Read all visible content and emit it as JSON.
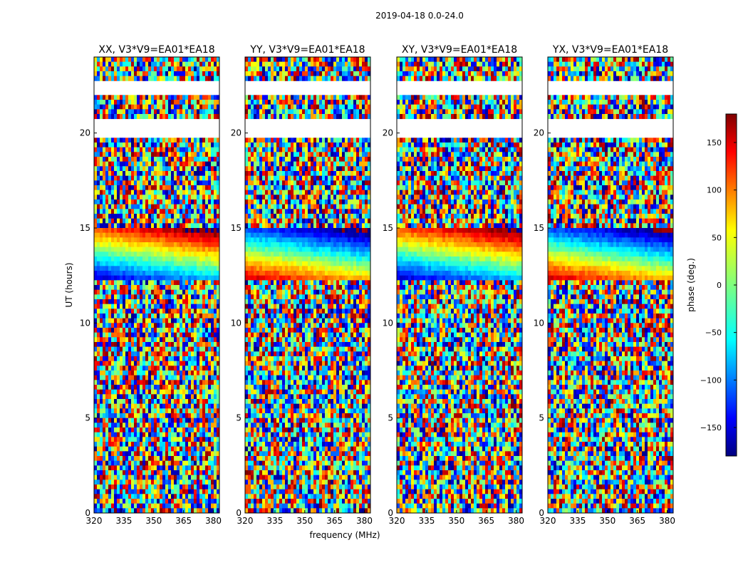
{
  "figure": {
    "suptitle": "2019-04-18 0.0-24.0",
    "shared_xlabel": "frequency (MHz)",
    "shared_ylabel": "UT (hours)"
  },
  "chart_data": [
    {
      "type": "heatmap",
      "title": "XX, V3*V9=EA01*EA18",
      "xlabel": "frequency (MHz)",
      "ylabel": "UT (hours)",
      "xlim": [
        320,
        383
      ],
      "ylim": [
        0,
        24
      ],
      "xticks": [
        320,
        335,
        350,
        365,
        380
      ],
      "yticks": [
        0,
        5,
        10,
        15,
        20
      ],
      "value": "phase",
      "flagged_ut_ranges": [
        [
          19.7,
          20.8
        ],
        [
          22.0,
          22.8
        ]
      ]
    },
    {
      "type": "heatmap",
      "title": "YY, V3*V9=EA01*EA18",
      "xlabel": "frequency (MHz)",
      "ylabel": "UT (hours)",
      "xlim": [
        320,
        383
      ],
      "ylim": [
        0,
        24
      ],
      "xticks": [
        320,
        335,
        350,
        365,
        380
      ],
      "yticks": [
        0,
        5,
        10,
        15,
        20
      ],
      "value": "phase",
      "flagged_ut_ranges": [
        [
          19.7,
          20.8
        ],
        [
          22.0,
          22.8
        ]
      ]
    },
    {
      "type": "heatmap",
      "title": "XY, V3*V9=EA01*EA18",
      "xlabel": "frequency (MHz)",
      "ylabel": "UT (hours)",
      "xlim": [
        320,
        383
      ],
      "ylim": [
        0,
        24
      ],
      "xticks": [
        320,
        335,
        350,
        365,
        380
      ],
      "yticks": [
        0,
        5,
        10,
        15,
        20
      ],
      "value": "phase",
      "flagged_ut_ranges": [
        [
          19.7,
          20.8
        ],
        [
          22.0,
          22.8
        ]
      ]
    },
    {
      "type": "heatmap",
      "title": "YX, V3*V9=EA01*EA18",
      "xlabel": "frequency (MHz)",
      "ylabel": "UT (hours)",
      "xlim": [
        320,
        383
      ],
      "ylim": [
        0,
        24
      ],
      "xticks": [
        320,
        335,
        350,
        365,
        380
      ],
      "yticks": [
        0,
        5,
        10,
        15,
        20
      ],
      "value": "phase",
      "flagged_ut_ranges": [
        [
          19.7,
          20.8
        ],
        [
          22.0,
          22.8
        ]
      ]
    }
  ],
  "colorbar": {
    "label": "phase (deg.)",
    "range": [
      -180,
      180
    ],
    "ticks": [
      -150,
      -100,
      -50,
      0,
      50,
      100,
      150
    ],
    "tick_labels": [
      "−150",
      "−100",
      "−50",
      "0",
      "50",
      "100",
      "150"
    ],
    "colormap": [
      "#00007f",
      "#0000ff",
      "#007fff",
      "#00ffff",
      "#7fff7f",
      "#ffff00",
      "#ff7f00",
      "#ff0000",
      "#7f0000"
    ]
  }
}
